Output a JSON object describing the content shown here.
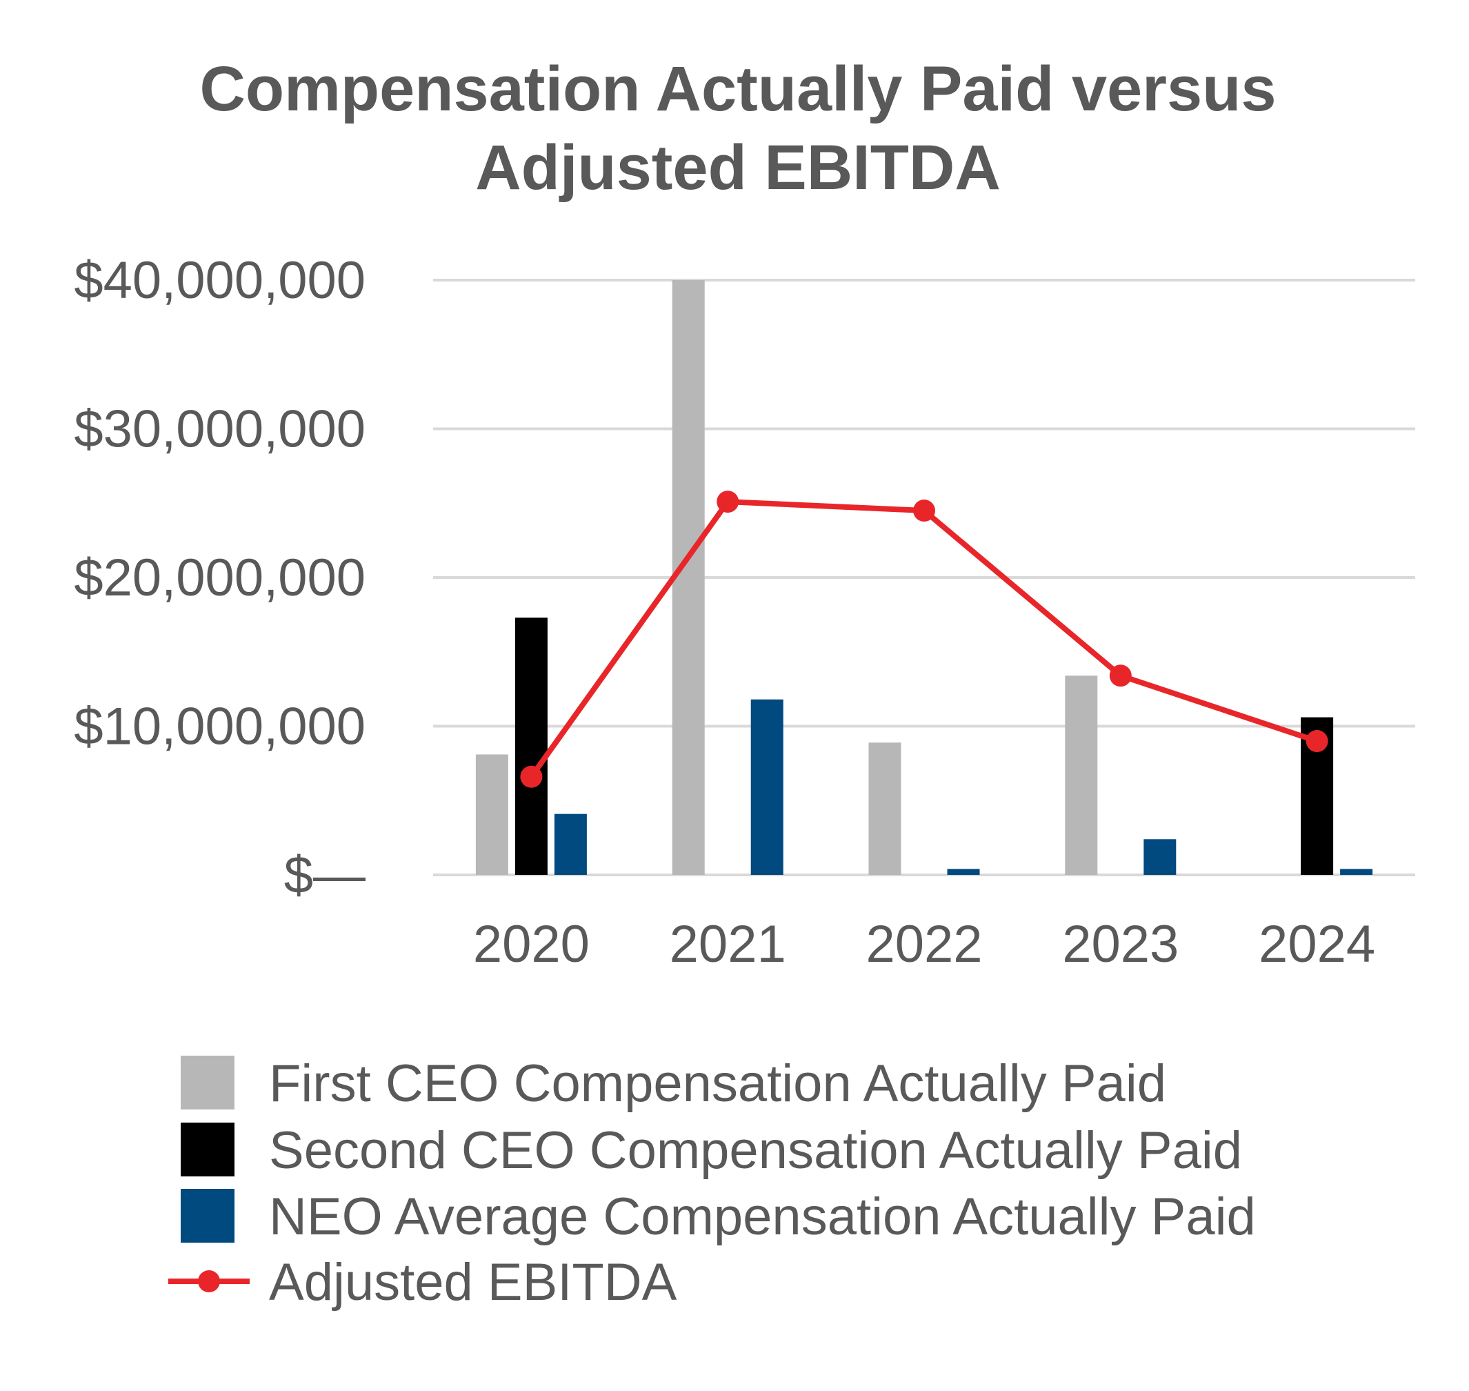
{
  "chart_data": {
    "type": "bar",
    "title_lines": [
      "Compensation Actually Paid versus",
      "Adjusted EBITDA"
    ],
    "categories": [
      "2020",
      "2021",
      "2022",
      "2023",
      "2024"
    ],
    "ylim": [
      0,
      40000000
    ],
    "yticks": [
      0,
      10000000,
      20000000,
      30000000,
      40000000
    ],
    "ytick_labels": [
      "$—",
      "$10,000,000",
      "$20,000,000",
      "$30,000,000",
      "$40,000,000"
    ],
    "grid": true,
    "legend_position": "bottom",
    "series": [
      {
        "name": "First CEO Compensation Actually Paid",
        "type": "bar",
        "color": "#b7b7b7",
        "values": [
          8100000,
          40000000,
          8900000,
          13400000,
          null
        ]
      },
      {
        "name": "Second CEO Compensation Actually Paid",
        "type": "bar",
        "color": "#000000",
        "values": [
          17300000,
          null,
          null,
          null,
          10600000
        ]
      },
      {
        "name": "NEO Average Compensation Actually Paid",
        "type": "bar",
        "color": "#004a80",
        "values": [
          4100000,
          11800000,
          400000,
          2400000,
          400000
        ]
      },
      {
        "name": "Adjusted EBITDA",
        "type": "line",
        "color": "#e8262a",
        "values": [
          6600000,
          25100000,
          24500000,
          13400000,
          9000000
        ]
      }
    ]
  }
}
